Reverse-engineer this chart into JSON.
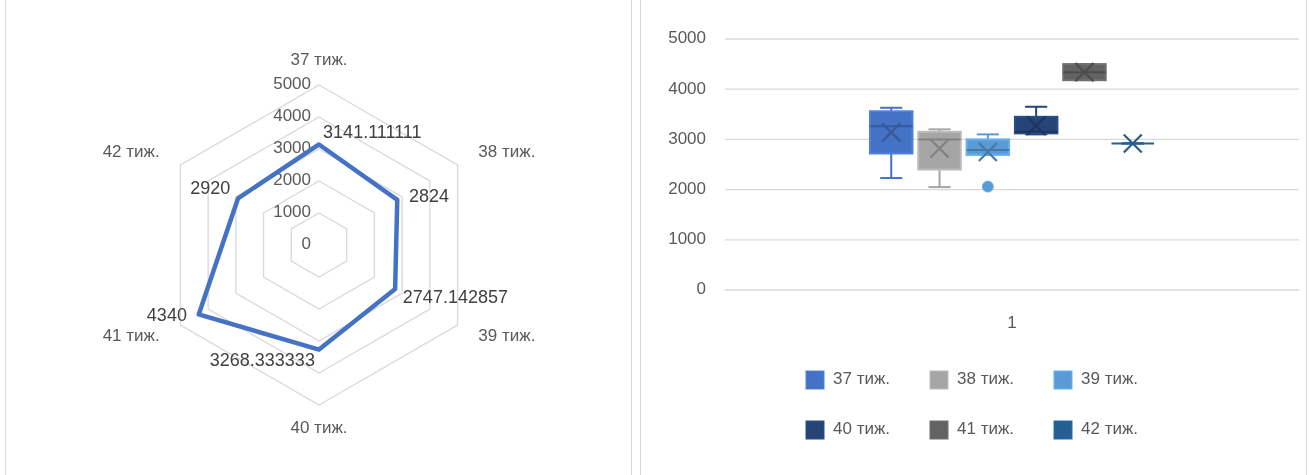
{
  "chart_data": [
    {
      "type": "radar",
      "categories": [
        "37 тиж.",
        "38 тиж.",
        "39 тиж.",
        "40 тиж.",
        "41 тиж.",
        "42 тиж."
      ],
      "series": [
        {
          "color": "#4472c4",
          "values": [
            3141.111111,
            2824,
            2747.142857,
            3268.333333,
            4340,
            2920
          ]
        }
      ],
      "ylim": [
        0,
        5000
      ],
      "yticks": [
        0,
        1000,
        2000,
        3000,
        4000,
        5000
      ],
      "grid": true,
      "data_labels": true
    },
    {
      "type": "box",
      "categories": [
        "1"
      ],
      "series": [
        {
          "name": "37 тиж.",
          "color": "#4472c4",
          "boxes": [
            {
              "low": 2230,
              "q1": 2720,
              "median": 3260,
              "q3": 3560,
              "high": 3630,
              "mean": 3140
            }
          ]
        },
        {
          "name": "38 тиж.",
          "color": "#a5a5a5",
          "boxes": [
            {
              "low": 2050,
              "q1": 2400,
              "median": 3000,
              "q3": 3150,
              "high": 3200,
              "mean": 2820
            }
          ]
        },
        {
          "name": "39 тиж.",
          "color": "#5b9bd5",
          "boxes": [
            {
              "low": 2690,
              "q1": 2690,
              "median": 2790,
              "q3": 3000,
              "high": 3100,
              "mean": 2750,
              "outliers": [
                2060
              ]
            }
          ]
        },
        {
          "name": "40 тиж.",
          "color": "#264478",
          "boxes": [
            {
              "low": 3100,
              "q1": 3120,
              "median": 3150,
              "q3": 3450,
              "high": 3650,
              "mean": 3270
            }
          ]
        },
        {
          "name": "41 тиж.",
          "color": "#636363",
          "boxes": [
            {
              "low": 4180,
              "q1": 4180,
              "median": 4340,
              "q3": 4500,
              "high": 4500,
              "mean": 4340
            }
          ]
        },
        {
          "name": "42 тиж.",
          "color": "#255e91",
          "boxes": [
            {
              "low": 2920,
              "q1": 2920,
              "median": 2920,
              "q3": 2920,
              "high": 2920,
              "mean": 2920
            }
          ]
        }
      ],
      "ylim": [
        0,
        5000
      ],
      "yticks": [
        0,
        1000,
        2000,
        3000,
        4000,
        5000
      ],
      "grid": "y",
      "legend": "bottom"
    }
  ]
}
